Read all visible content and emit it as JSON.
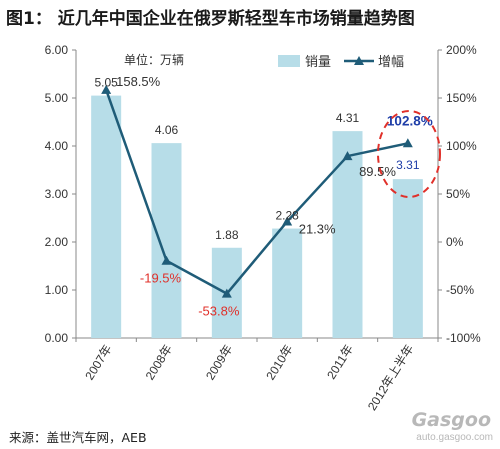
{
  "title": "图1： 近几年中国企业在俄罗斯轻型车市场销量趋势图",
  "source": "来源：盖世汽车网，AEB",
  "watermark": {
    "logo": "Gasgoo",
    "url": "auto.gasgoo.com"
  },
  "chart_data": {
    "type": "bar",
    "unit_note": "单位：万辆",
    "categories": [
      "2007年",
      "2008年",
      "2009年",
      "2010年",
      "2011年",
      "2012年上半年"
    ],
    "series": [
      {
        "name": "销量",
        "type": "bar",
        "axis": "left",
        "color": "#b7dde8",
        "values": [
          5.05,
          4.06,
          1.88,
          2.28,
          4.31,
          3.31
        ],
        "labels": [
          "5.05",
          "4.06",
          "1.88",
          "2.28",
          "4.31",
          "3.31"
        ]
      },
      {
        "name": "增幅",
        "type": "line",
        "axis": "right",
        "color": "#1f5c78",
        "values": [
          158.5,
          -19.5,
          -53.8,
          21.3,
          89.5,
          102.8
        ],
        "labels": [
          "158.5%",
          "-19.5%",
          "-53.8%",
          "21.3%",
          "89.5%",
          "102.8%"
        ]
      }
    ],
    "y_left": {
      "min": 0,
      "max": 6,
      "ticks": [
        "0.00",
        "1.00",
        "2.00",
        "3.00",
        "4.00",
        "5.00",
        "6.00"
      ]
    },
    "y_right": {
      "min": -100,
      "max": 200,
      "ticks": [
        "-100%",
        "-50%",
        "0%",
        "50%",
        "100%",
        "150%",
        "200%"
      ]
    },
    "legend": {
      "position": "top-right",
      "items": [
        "销量",
        "增幅"
      ]
    },
    "grid": false,
    "highlight": {
      "category": "2012年上半年",
      "style": "red dashed ellipse"
    },
    "label_colors": {
      "negative": "#e0302a",
      "highlight": "#1f3ea8",
      "default": "#333333"
    }
  }
}
